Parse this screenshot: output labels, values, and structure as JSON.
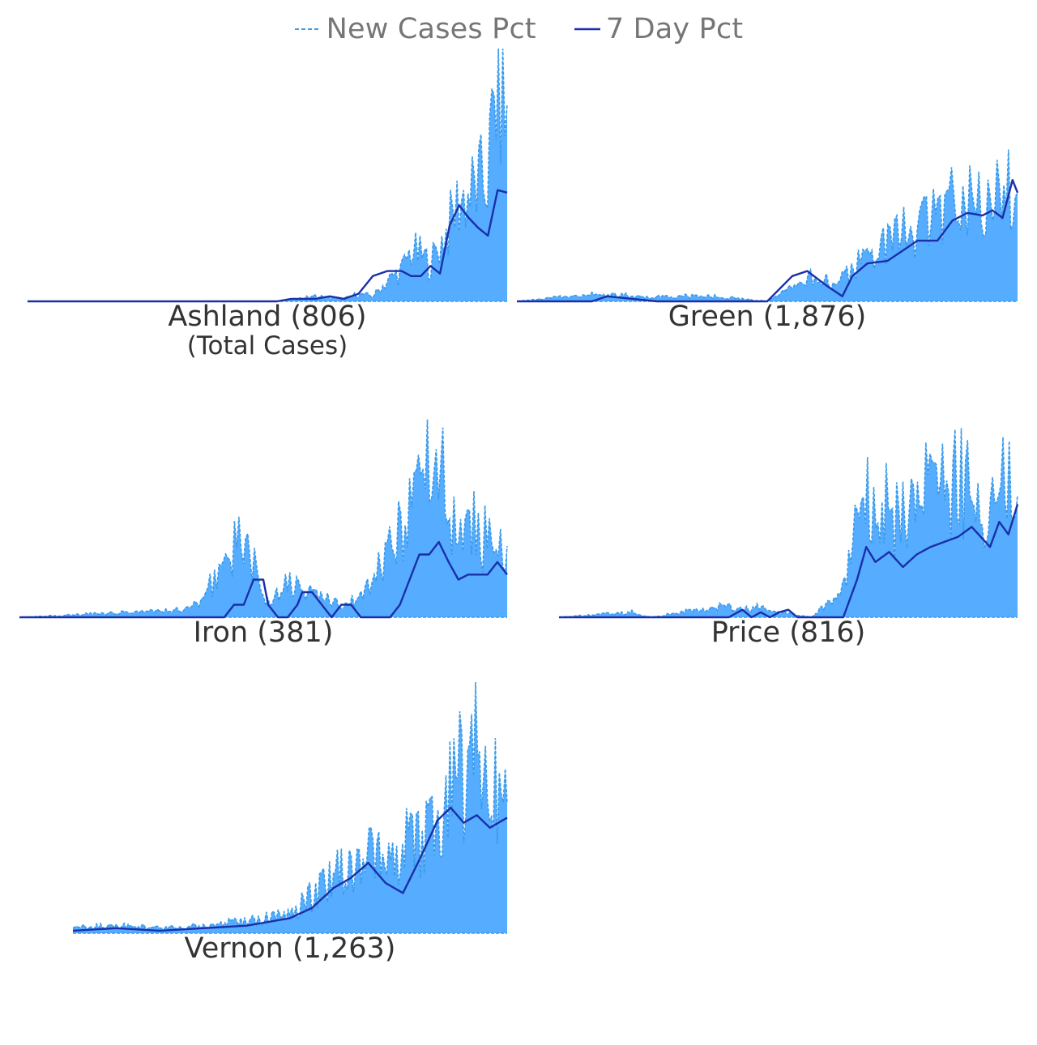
{
  "legend": {
    "new_cases_label": "New Cases Pct",
    "seven_day_label": "7 Day Pct"
  },
  "colors": {
    "bar_fill": "#56acff",
    "new_cases_line": "#3a9be8",
    "seven_day_line": "#1a2fa8",
    "title_text": "#333333",
    "legend_text": "#767676"
  },
  "chart_data": [
    {
      "type": "area",
      "title": "Ashland (806)",
      "subtitle": "(Total Cases)",
      "total_cases": 806,
      "series": [
        {
          "name": "New Cases Pct",
          "x": [
            0,
            52,
            60,
            66,
            69,
            72,
            75,
            78,
            80,
            82,
            84,
            86,
            88,
            90,
            92,
            94,
            96,
            98,
            100
          ],
          "values": [
            0,
            0,
            0.02,
            0.01,
            0.03,
            0.02,
            0.08,
            0.12,
            0.2,
            0.18,
            0.15,
            0.22,
            0.3,
            0.4,
            0.42,
            0.45,
            0.5,
            0.9,
            0.7
          ]
        },
        {
          "name": "7 Day Pct",
          "x": [
            0,
            52,
            55,
            60,
            63,
            66,
            69,
            72,
            75,
            78,
            80,
            82,
            84,
            86,
            88,
            90,
            92,
            94,
            96,
            98,
            100
          ],
          "values": [
            0,
            0,
            0.01,
            0.01,
            0.02,
            0.01,
            0.03,
            0.1,
            0.12,
            0.12,
            0.1,
            0.1,
            0.14,
            0.11,
            0.3,
            0.38,
            0.33,
            0.29,
            0.26,
            0.44,
            0.43
          ]
        }
      ]
    },
    {
      "type": "area",
      "title": "Green (1,876)",
      "total_cases": 1876,
      "series": [
        {
          "name": "New Cases Pct",
          "x": [
            0,
            15,
            25,
            40,
            50,
            55,
            60,
            63,
            66,
            70,
            73,
            76,
            80,
            83,
            86,
            90,
            93,
            96,
            100
          ],
          "values": [
            0,
            0.03,
            0.02,
            0.02,
            0,
            0.05,
            0.1,
            0.08,
            0.1,
            0.18,
            0.2,
            0.26,
            0.28,
            0.32,
            0.38,
            0.45,
            0.42,
            0.4,
            0.5
          ]
        },
        {
          "name": "7 Day Pct",
          "x": [
            0,
            15,
            18,
            28,
            40,
            50,
            55,
            58,
            62,
            65,
            67,
            70,
            74,
            77,
            80,
            84,
            87,
            90,
            93,
            95,
            97,
            99,
            100
          ],
          "values": [
            0,
            0,
            0.02,
            0,
            0,
            0,
            0.1,
            0.12,
            0.06,
            0.02,
            0.1,
            0.15,
            0.16,
            0.2,
            0.24,
            0.24,
            0.32,
            0.35,
            0.34,
            0.36,
            0.33,
            0.48,
            0.43
          ]
        }
      ]
    },
    {
      "type": "area",
      "title": "Iron (381)",
      "total_cases": 381,
      "series": [
        {
          "name": "New Cases Pct",
          "x": [
            0,
            35,
            42,
            46,
            50,
            55,
            58,
            62,
            66,
            70,
            74,
            78,
            82,
            86,
            89,
            92,
            95,
            98,
            100
          ],
          "values": [
            0,
            0.03,
            0.2,
            0.35,
            0.06,
            0.15,
            0.1,
            0.08,
            0.05,
            0.08,
            0.2,
            0.35,
            0.55,
            0.6,
            0.35,
            0.4,
            0.3,
            0.35,
            0.25
          ]
        },
        {
          "name": "7 Day Pct",
          "x": [
            0,
            42,
            44,
            46,
            48,
            50,
            51,
            53,
            55,
            57,
            58,
            60,
            62,
            64,
            66,
            68,
            70,
            72,
            74,
            76,
            78,
            80,
            82,
            84,
            86,
            88,
            90,
            92,
            94,
            96,
            98,
            100
          ],
          "values": [
            0,
            0,
            0.05,
            0.05,
            0.15,
            0.15,
            0.05,
            0,
            0,
            0.05,
            0.1,
            0.1,
            0.05,
            0,
            0.05,
            0.05,
            0,
            0,
            0,
            0,
            0.05,
            0.15,
            0.25,
            0.25,
            0.3,
            0.22,
            0.15,
            0.17,
            0.17,
            0.17,
            0.22,
            0.17
          ]
        }
      ]
    },
    {
      "type": "area",
      "title": "Price (816)",
      "total_cases": 816,
      "series": [
        {
          "name": "New Cases Pct",
          "x": [
            0,
            16,
            20,
            37,
            40,
            43,
            47,
            50,
            55,
            62,
            65,
            68,
            70,
            73,
            76,
            80,
            83,
            86,
            90,
            93,
            96,
            100
          ],
          "values": [
            0,
            0.02,
            0,
            0.05,
            0.03,
            0.04,
            0.02,
            0.02,
            0,
            0.1,
            0.35,
            0.5,
            0.45,
            0.4,
            0.42,
            0.48,
            0.5,
            0.55,
            0.5,
            0.48,
            0.52,
            0.5
          ]
        },
        {
          "name": "7 Day Pct",
          "x": [
            0,
            37,
            40,
            42,
            44,
            46,
            48,
            50,
            52,
            55,
            62,
            65,
            67,
            69,
            72,
            75,
            78,
            81,
            84,
            87,
            90,
            92,
            94,
            96,
            98,
            100
          ],
          "values": [
            0,
            0,
            0.03,
            0,
            0.02,
            0,
            0.02,
            0.03,
            0,
            0,
            0,
            0.15,
            0.28,
            0.22,
            0.26,
            0.2,
            0.25,
            0.28,
            0.3,
            0.32,
            0.36,
            0.32,
            0.28,
            0.38,
            0.33,
            0.45
          ]
        }
      ]
    },
    {
      "type": "area",
      "title": "Vernon (1,263)",
      "total_cases": 1263,
      "series": [
        {
          "name": "New Cases Pct",
          "x": [
            0,
            10,
            20,
            30,
            40,
            50,
            55,
            60,
            65,
            70,
            75,
            80,
            85,
            88,
            90,
            93,
            96,
            100
          ],
          "values": [
            0.02,
            0.03,
            0.02,
            0.03,
            0.05,
            0.08,
            0.15,
            0.22,
            0.28,
            0.3,
            0.33,
            0.38,
            0.5,
            0.6,
            0.65,
            0.7,
            0.72,
            0.5
          ]
        },
        {
          "name": "7 Day Pct",
          "x": [
            0,
            10,
            20,
            30,
            40,
            50,
            55,
            60,
            64,
            68,
            72,
            76,
            80,
            84,
            87,
            90,
            93,
            96,
            100
          ],
          "values": [
            0.01,
            0.02,
            0.01,
            0.02,
            0.03,
            0.06,
            0.1,
            0.18,
            0.22,
            0.28,
            0.2,
            0.16,
            0.3,
            0.45,
            0.5,
            0.44,
            0.47,
            0.42,
            0.46
          ]
        }
      ]
    }
  ]
}
